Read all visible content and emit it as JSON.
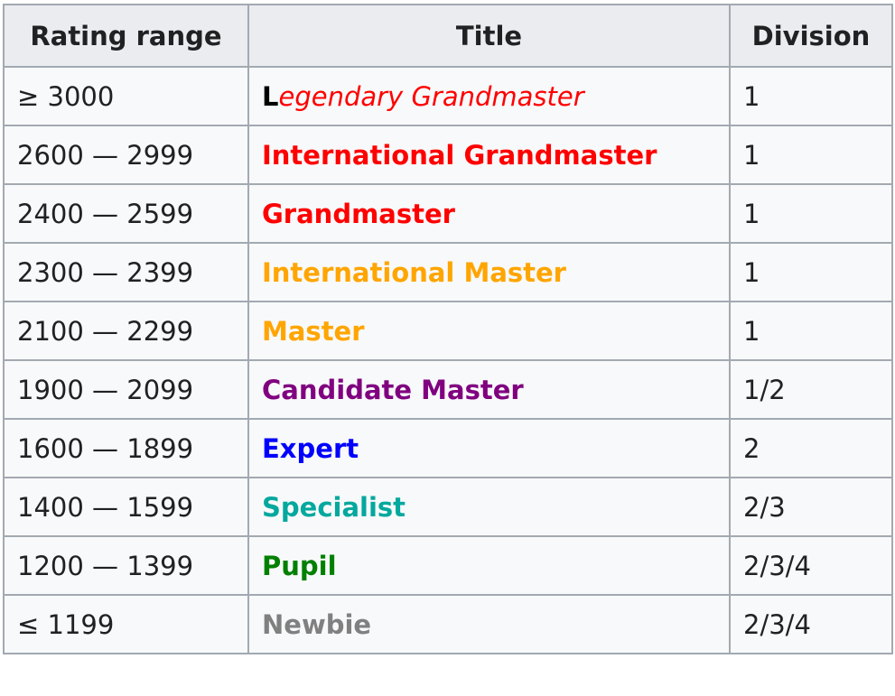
{
  "table": {
    "headers": {
      "rating_range": "Rating range",
      "title": "Title",
      "division": "Division"
    },
    "rows": [
      {
        "range": "≥ 3000",
        "title_first": "L",
        "title_rest": "egendary Grandmaster",
        "division": "1",
        "color": "#ff0000",
        "style": "legendary"
      },
      {
        "range": "2600 — 2999",
        "title": "International Grandmaster",
        "division": "1",
        "color": "#ff0000"
      },
      {
        "range": "2400 — 2599",
        "title": "Grandmaster",
        "division": "1",
        "color": "#ff0000"
      },
      {
        "range": "2300 — 2399",
        "title": "International Master",
        "division": "1",
        "color": "#ffa500"
      },
      {
        "range": "2100 — 2299",
        "title": "Master",
        "division": "1",
        "color": "#ffa500"
      },
      {
        "range": "1900 — 2099",
        "title": "Candidate Master",
        "division": "1/2",
        "color": "#800080"
      },
      {
        "range": "1600 — 1899",
        "title": "Expert",
        "division": "2",
        "color": "#0000ff"
      },
      {
        "range": "1400 — 1599",
        "title": "Specialist",
        "division": "2/3",
        "color": "#03a89e"
      },
      {
        "range": "1200 — 1399",
        "title": "Pupil",
        "division": "2/3/4",
        "color": "#008000"
      },
      {
        "range": "≤ 1199",
        "title": "Newbie",
        "division": "2/3/4",
        "color": "#808080"
      }
    ]
  }
}
